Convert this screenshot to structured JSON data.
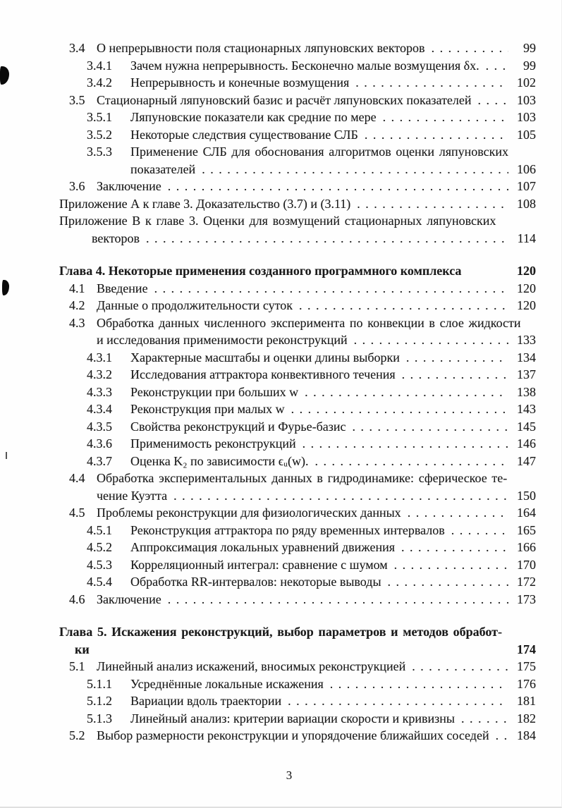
{
  "page": {
    "footer_page_number": "3"
  },
  "toc": {
    "entries": [
      {
        "type": "section",
        "num": "3.4",
        "lines": [
          "О непрерывности поля стационарных ляпуновских векторов"
        ],
        "page": "99"
      },
      {
        "type": "subsection",
        "num": "3.4.1",
        "lines": [
          "Зачем нужна непрерывность. Бесконечно малые возмущения δx."
        ],
        "page": "99"
      },
      {
        "type": "subsection",
        "num": "3.4.2",
        "lines": [
          "Непрерывность и конечные возмущения"
        ],
        "page": "102"
      },
      {
        "type": "section",
        "num": "3.5",
        "lines": [
          "Стационарный ляпуновский базис и расчёт ляпуновских показателей"
        ],
        "page": "103"
      },
      {
        "type": "subsection",
        "num": "3.5.1",
        "lines": [
          "Ляпуновские показатели как средние по мере"
        ],
        "page": "103"
      },
      {
        "type": "subsection",
        "num": "3.5.2",
        "lines": [
          "Некоторые следствия существование СЛБ"
        ],
        "page": "105"
      },
      {
        "type": "subsection",
        "num": "3.5.3",
        "lines": [
          "Применение СЛБ для обоснования алгоритмов оценки ляпуновских",
          "показателей"
        ],
        "page": "106"
      },
      {
        "type": "section",
        "num": "3.6",
        "lines": [
          "Заключение"
        ],
        "page": "107"
      },
      {
        "type": "appendix",
        "num": "",
        "lines": [
          "Приложение А к главе 3. Доказательство (3.7) и (3.11)"
        ],
        "page": "108"
      },
      {
        "type": "appendix",
        "num": "",
        "lines": [
          "Приложение В к главе 3. Оценки для возмущений стационарных ляпуновских",
          "векторов"
        ],
        "page": "114"
      },
      {
        "type": "chapter",
        "num": "",
        "lines": [
          "Глава 4. Некоторые применения созданного программного комплекса"
        ],
        "page": "120"
      },
      {
        "type": "section",
        "num": "4.1",
        "lines": [
          "Введение"
        ],
        "page": "120"
      },
      {
        "type": "section",
        "num": "4.2",
        "lines": [
          "Данные о продолжительности суток"
        ],
        "page": "120"
      },
      {
        "type": "section",
        "num": "4.3",
        "lines": [
          "Обработка данных численного эксперимента по конвекции в слое жидкости",
          "и исследования применимости реконструкций"
        ],
        "page": "133"
      },
      {
        "type": "subsection",
        "num": "4.3.1",
        "lines": [
          "Характерные масштабы и оценки длины выборки"
        ],
        "page": "134"
      },
      {
        "type": "subsection",
        "num": "4.3.2",
        "lines": [
          "Исследования аттрактора конвективного течения"
        ],
        "page": "137"
      },
      {
        "type": "subsection",
        "num": "4.3.3",
        "lines": [
          "Реконструкции при больших w"
        ],
        "page": "138"
      },
      {
        "type": "subsection",
        "num": "4.3.4",
        "lines": [
          "Реконструкция при малых w"
        ],
        "page": "143"
      },
      {
        "type": "subsection",
        "num": "4.3.5",
        "lines": [
          "Свойства реконструкций и Фурье-базис"
        ],
        "page": "145"
      },
      {
        "type": "subsection",
        "num": "4.3.6",
        "lines": [
          "Применимость реконструкций"
        ],
        "page": "146"
      },
      {
        "type": "subsection",
        "num": "4.3.7",
        "lines": [
          "Оценка K₂ по зависимости ϵᵤ(w)."
        ],
        "page": "147"
      },
      {
        "type": "section",
        "num": "4.4",
        "lines": [
          "Обработка экспериментальных данных в гидродинамике: сферическое те-",
          "чение Куэтта"
        ],
        "page": "150"
      },
      {
        "type": "section",
        "num": "4.5",
        "lines": [
          "Проблемы реконструкции для физиологических данных"
        ],
        "page": "164"
      },
      {
        "type": "subsection",
        "num": "4.5.1",
        "lines": [
          "Реконструкция аттрактора по ряду временных интервалов"
        ],
        "page": "165"
      },
      {
        "type": "subsection",
        "num": "4.5.2",
        "lines": [
          "Аппроксимация локальных уравнений движения"
        ],
        "page": "166"
      },
      {
        "type": "subsection",
        "num": "4.5.3",
        "lines": [
          "Корреляционный интеграл: сравнение с шумом"
        ],
        "page": "170"
      },
      {
        "type": "subsection",
        "num": "4.5.4",
        "lines": [
          "Обработка RR-интервалов: некоторые выводы"
        ],
        "page": "172"
      },
      {
        "type": "section",
        "num": "4.6",
        "lines": [
          "Заключение"
        ],
        "page": "173"
      },
      {
        "type": "chapter",
        "num": "",
        "lines": [
          "Глава 5. Искажения реконструкций, выбор параметров и методов обработ-",
          "ки"
        ],
        "page": "174"
      },
      {
        "type": "section",
        "num": "5.1",
        "lines": [
          "Линейный анализ искажений, вносимых реконструкцией"
        ],
        "page": "175"
      },
      {
        "type": "subsection",
        "num": "5.1.1",
        "lines": [
          "Усреднённые локальные искажения"
        ],
        "page": "176"
      },
      {
        "type": "subsection",
        "num": "5.1.2",
        "lines": [
          "Вариации вдоль траектории"
        ],
        "page": "181"
      },
      {
        "type": "subsection",
        "num": "5.1.3",
        "lines": [
          "Линейный анализ: критерии вариации скорости и кривизны"
        ],
        "page": "182"
      },
      {
        "type": "section",
        "num": "5.2",
        "lines": [
          "Выбор размерности реконструкции и упорядочение ближайших соседей"
        ],
        "page": "184"
      }
    ]
  }
}
